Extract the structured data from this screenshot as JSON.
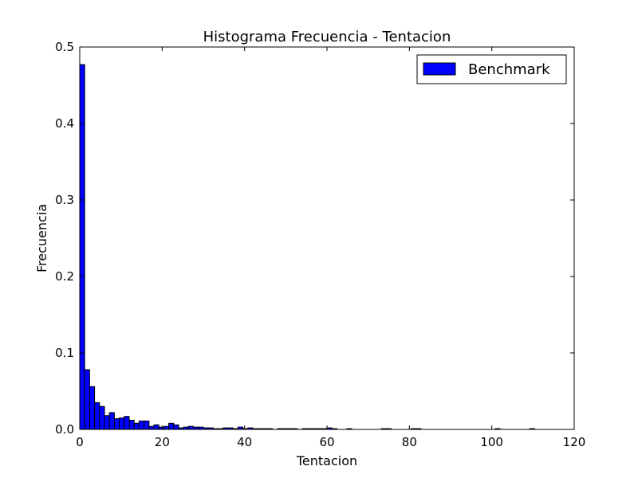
{
  "chart_data": {
    "type": "bar",
    "title": "Histograma Frecuencia - Tentacion",
    "xlabel": "Tentacion",
    "ylabel": "Frecuencia",
    "xlim": [
      0,
      120
    ],
    "ylim": [
      0,
      0.5
    ],
    "xticks": [
      0,
      20,
      40,
      60,
      80,
      100,
      120
    ],
    "xtick_labels": [
      "0",
      "20",
      "40",
      "60",
      "80",
      "100",
      "120"
    ],
    "yticks": [
      0.0,
      0.1,
      0.2,
      0.3,
      0.4,
      0.5
    ],
    "ytick_labels": [
      "0.0",
      "0.1",
      "0.2",
      "0.3",
      "0.4",
      "0.5"
    ],
    "grid": false,
    "legend_position": "top-right",
    "colors": {
      "bar": "#0000ff",
      "edge": "#000000"
    },
    "series": [
      {
        "name": "Benchmark",
        "bin_width": 1.2,
        "bin_starts": [
          0,
          1.2,
          2.4,
          3.6,
          4.8,
          6.0,
          7.2,
          8.4,
          9.6,
          10.8,
          12.0,
          13.2,
          14.4,
          15.6,
          16.8,
          18.0,
          19.2,
          20.4,
          21.6,
          22.8,
          24.0,
          25.2,
          26.4,
          27.6,
          28.8,
          30.0,
          31.2,
          32.4,
          33.6,
          34.8,
          36.0,
          37.2,
          38.4,
          39.6,
          40.8,
          42.0,
          43.2,
          44.4,
          45.6,
          48.0,
          49.2,
          50.4,
          51.6,
          54.0,
          55.2,
          56.4,
          57.6,
          58.8,
          60.0,
          61.2,
          64.8,
          73.2,
          74.4,
          80.4,
          81.6,
          100.8,
          109.2
        ],
        "values": [
          0.477,
          0.078,
          0.056,
          0.035,
          0.03,
          0.018,
          0.022,
          0.014,
          0.015,
          0.017,
          0.012,
          0.008,
          0.011,
          0.011,
          0.004,
          0.006,
          0.003,
          0.004,
          0.008,
          0.006,
          0.002,
          0.003,
          0.004,
          0.003,
          0.003,
          0.002,
          0.002,
          0.001,
          0.001,
          0.002,
          0.002,
          0.001,
          0.003,
          0.001,
          0.002,
          0.001,
          0.001,
          0.001,
          0.001,
          0.001,
          0.001,
          0.001,
          0.001,
          0.001,
          0.001,
          0.001,
          0.001,
          0.001,
          0.002,
          0.001,
          0.001,
          0.001,
          0.001,
          0.001,
          0.001,
          0.001,
          0.001
        ]
      }
    ]
  }
}
